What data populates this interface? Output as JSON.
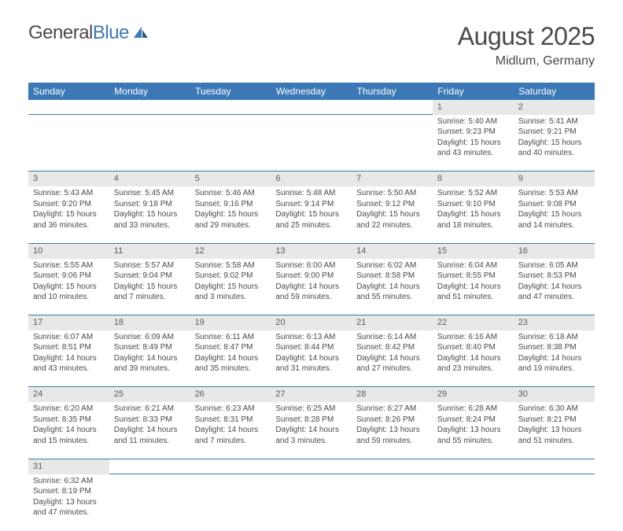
{
  "logo": {
    "text1": "General",
    "text2": "Blue"
  },
  "title": "August 2025",
  "location": "Midlum, Germany",
  "colors": {
    "header_bg": "#3b78b5",
    "header_text": "#ffffff",
    "daynum_bg": "#e8e8e8",
    "cell_border": "#3b78b5",
    "text": "#4a4a4a"
  },
  "weekdays": [
    "Sunday",
    "Monday",
    "Tuesday",
    "Wednesday",
    "Thursday",
    "Friday",
    "Saturday"
  ],
  "weeks": [
    {
      "nums": [
        "",
        "",
        "",
        "",
        "",
        "1",
        "2"
      ],
      "cells": [
        null,
        null,
        null,
        null,
        null,
        {
          "sunrise": "Sunrise: 5:40 AM",
          "sunset": "Sunset: 9:23 PM",
          "day1": "Daylight: 15 hours",
          "day2": "and 43 minutes."
        },
        {
          "sunrise": "Sunrise: 5:41 AM",
          "sunset": "Sunset: 9:21 PM",
          "day1": "Daylight: 15 hours",
          "day2": "and 40 minutes."
        }
      ]
    },
    {
      "nums": [
        "3",
        "4",
        "5",
        "6",
        "7",
        "8",
        "9"
      ],
      "cells": [
        {
          "sunrise": "Sunrise: 5:43 AM",
          "sunset": "Sunset: 9:20 PM",
          "day1": "Daylight: 15 hours",
          "day2": "and 36 minutes."
        },
        {
          "sunrise": "Sunrise: 5:45 AM",
          "sunset": "Sunset: 9:18 PM",
          "day1": "Daylight: 15 hours",
          "day2": "and 33 minutes."
        },
        {
          "sunrise": "Sunrise: 5:46 AM",
          "sunset": "Sunset: 9:16 PM",
          "day1": "Daylight: 15 hours",
          "day2": "and 29 minutes."
        },
        {
          "sunrise": "Sunrise: 5:48 AM",
          "sunset": "Sunset: 9:14 PM",
          "day1": "Daylight: 15 hours",
          "day2": "and 25 minutes."
        },
        {
          "sunrise": "Sunrise: 5:50 AM",
          "sunset": "Sunset: 9:12 PM",
          "day1": "Daylight: 15 hours",
          "day2": "and 22 minutes."
        },
        {
          "sunrise": "Sunrise: 5:52 AM",
          "sunset": "Sunset: 9:10 PM",
          "day1": "Daylight: 15 hours",
          "day2": "and 18 minutes."
        },
        {
          "sunrise": "Sunrise: 5:53 AM",
          "sunset": "Sunset: 9:08 PM",
          "day1": "Daylight: 15 hours",
          "day2": "and 14 minutes."
        }
      ]
    },
    {
      "nums": [
        "10",
        "11",
        "12",
        "13",
        "14",
        "15",
        "16"
      ],
      "cells": [
        {
          "sunrise": "Sunrise: 5:55 AM",
          "sunset": "Sunset: 9:06 PM",
          "day1": "Daylight: 15 hours",
          "day2": "and 10 minutes."
        },
        {
          "sunrise": "Sunrise: 5:57 AM",
          "sunset": "Sunset: 9:04 PM",
          "day1": "Daylight: 15 hours",
          "day2": "and 7 minutes."
        },
        {
          "sunrise": "Sunrise: 5:58 AM",
          "sunset": "Sunset: 9:02 PM",
          "day1": "Daylight: 15 hours",
          "day2": "and 3 minutes."
        },
        {
          "sunrise": "Sunrise: 6:00 AM",
          "sunset": "Sunset: 9:00 PM",
          "day1": "Daylight: 14 hours",
          "day2": "and 59 minutes."
        },
        {
          "sunrise": "Sunrise: 6:02 AM",
          "sunset": "Sunset: 8:58 PM",
          "day1": "Daylight: 14 hours",
          "day2": "and 55 minutes."
        },
        {
          "sunrise": "Sunrise: 6:04 AM",
          "sunset": "Sunset: 8:55 PM",
          "day1": "Daylight: 14 hours",
          "day2": "and 51 minutes."
        },
        {
          "sunrise": "Sunrise: 6:05 AM",
          "sunset": "Sunset: 8:53 PM",
          "day1": "Daylight: 14 hours",
          "day2": "and 47 minutes."
        }
      ]
    },
    {
      "nums": [
        "17",
        "18",
        "19",
        "20",
        "21",
        "22",
        "23"
      ],
      "cells": [
        {
          "sunrise": "Sunrise: 6:07 AM",
          "sunset": "Sunset: 8:51 PM",
          "day1": "Daylight: 14 hours",
          "day2": "and 43 minutes."
        },
        {
          "sunrise": "Sunrise: 6:09 AM",
          "sunset": "Sunset: 8:49 PM",
          "day1": "Daylight: 14 hours",
          "day2": "and 39 minutes."
        },
        {
          "sunrise": "Sunrise: 6:11 AM",
          "sunset": "Sunset: 8:47 PM",
          "day1": "Daylight: 14 hours",
          "day2": "and 35 minutes."
        },
        {
          "sunrise": "Sunrise: 6:13 AM",
          "sunset": "Sunset: 8:44 PM",
          "day1": "Daylight: 14 hours",
          "day2": "and 31 minutes."
        },
        {
          "sunrise": "Sunrise: 6:14 AM",
          "sunset": "Sunset: 8:42 PM",
          "day1": "Daylight: 14 hours",
          "day2": "and 27 minutes."
        },
        {
          "sunrise": "Sunrise: 6:16 AM",
          "sunset": "Sunset: 8:40 PM",
          "day1": "Daylight: 14 hours",
          "day2": "and 23 minutes."
        },
        {
          "sunrise": "Sunrise: 6:18 AM",
          "sunset": "Sunset: 8:38 PM",
          "day1": "Daylight: 14 hours",
          "day2": "and 19 minutes."
        }
      ]
    },
    {
      "nums": [
        "24",
        "25",
        "26",
        "27",
        "28",
        "29",
        "30"
      ],
      "cells": [
        {
          "sunrise": "Sunrise: 6:20 AM",
          "sunset": "Sunset: 8:35 PM",
          "day1": "Daylight: 14 hours",
          "day2": "and 15 minutes."
        },
        {
          "sunrise": "Sunrise: 6:21 AM",
          "sunset": "Sunset: 8:33 PM",
          "day1": "Daylight: 14 hours",
          "day2": "and 11 minutes."
        },
        {
          "sunrise": "Sunrise: 6:23 AM",
          "sunset": "Sunset: 8:31 PM",
          "day1": "Daylight: 14 hours",
          "day2": "and 7 minutes."
        },
        {
          "sunrise": "Sunrise: 6:25 AM",
          "sunset": "Sunset: 8:28 PM",
          "day1": "Daylight: 14 hours",
          "day2": "and 3 minutes."
        },
        {
          "sunrise": "Sunrise: 6:27 AM",
          "sunset": "Sunset: 8:26 PM",
          "day1": "Daylight: 13 hours",
          "day2": "and 59 minutes."
        },
        {
          "sunrise": "Sunrise: 6:28 AM",
          "sunset": "Sunset: 8:24 PM",
          "day1": "Daylight: 13 hours",
          "day2": "and 55 minutes."
        },
        {
          "sunrise": "Sunrise: 6:30 AM",
          "sunset": "Sunset: 8:21 PM",
          "day1": "Daylight: 13 hours",
          "day2": "and 51 minutes."
        }
      ]
    },
    {
      "nums": [
        "31",
        "",
        "",
        "",
        "",
        "",
        ""
      ],
      "cells": [
        {
          "sunrise": "Sunrise: 6:32 AM",
          "sunset": "Sunset: 8:19 PM",
          "day1": "Daylight: 13 hours",
          "day2": "and 47 minutes."
        },
        null,
        null,
        null,
        null,
        null,
        null
      ]
    }
  ]
}
